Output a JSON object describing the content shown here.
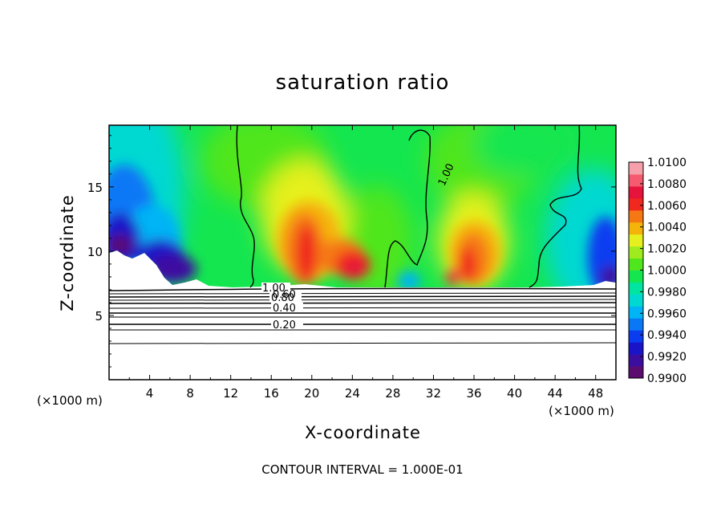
{
  "chart_data": {
    "type": "heatmap",
    "title": "saturation ratio",
    "xlabel": "X-coordinate",
    "ylabel": "Z-coordinate",
    "x_unit_left": "(×1000 m)",
    "x_unit_right": "(×1000 m)",
    "footnote": "CONTOUR INTERVAL = 1.000E-01",
    "xlim": [
      0,
      50
    ],
    "ylim": [
      0,
      19.8
    ],
    "x_ticks": [
      "4",
      "8",
      "12",
      "16",
      "20",
      "24",
      "28",
      "32",
      "36",
      "40",
      "44",
      "48"
    ],
    "y_ticks": [
      "5",
      "10",
      "15"
    ],
    "colorbar": {
      "min": 0.99,
      "max": 1.01,
      "labels": [
        "1.0100",
        "1.0080",
        "1.0060",
        "1.0040",
        "1.0020",
        "1.0000",
        "0.9980",
        "0.9960",
        "0.9940",
        "0.9920",
        "0.9900"
      ],
      "colors": [
        "#5a0d6e",
        "#3c0ea0",
        "#1a14c8",
        "#0a3cf0",
        "#0a78f5",
        "#00b4f5",
        "#00d8d2",
        "#00e6a0",
        "#14e650",
        "#50e61e",
        "#a0eb1e",
        "#e6f01e",
        "#f5b40a",
        "#f57814",
        "#f0281e",
        "#e6143c",
        "#f55a6e",
        "#f5a0aa"
      ]
    },
    "contour_labels": [
      "1.00",
      "0.80",
      "0.60",
      "0.40",
      "0.20",
      "1.00"
    ],
    "surface_z": 7.2,
    "warm_cells": [
      {
        "x": 19.3,
        "z": 11.4,
        "value": 1.0065
      },
      {
        "x": 23.8,
        "z": 9.6,
        "value": 1.007
      },
      {
        "x": 36.2,
        "z": 10.0,
        "value": 1.0065
      }
    ],
    "dry_cells": [
      {
        "x": 2.0,
        "z": 11.5,
        "value": 0.9905
      },
      {
        "x": 6.5,
        "z": 10.0,
        "value": 0.991
      },
      {
        "x": 48.5,
        "z": 9.5,
        "value": 0.9915
      }
    ]
  }
}
